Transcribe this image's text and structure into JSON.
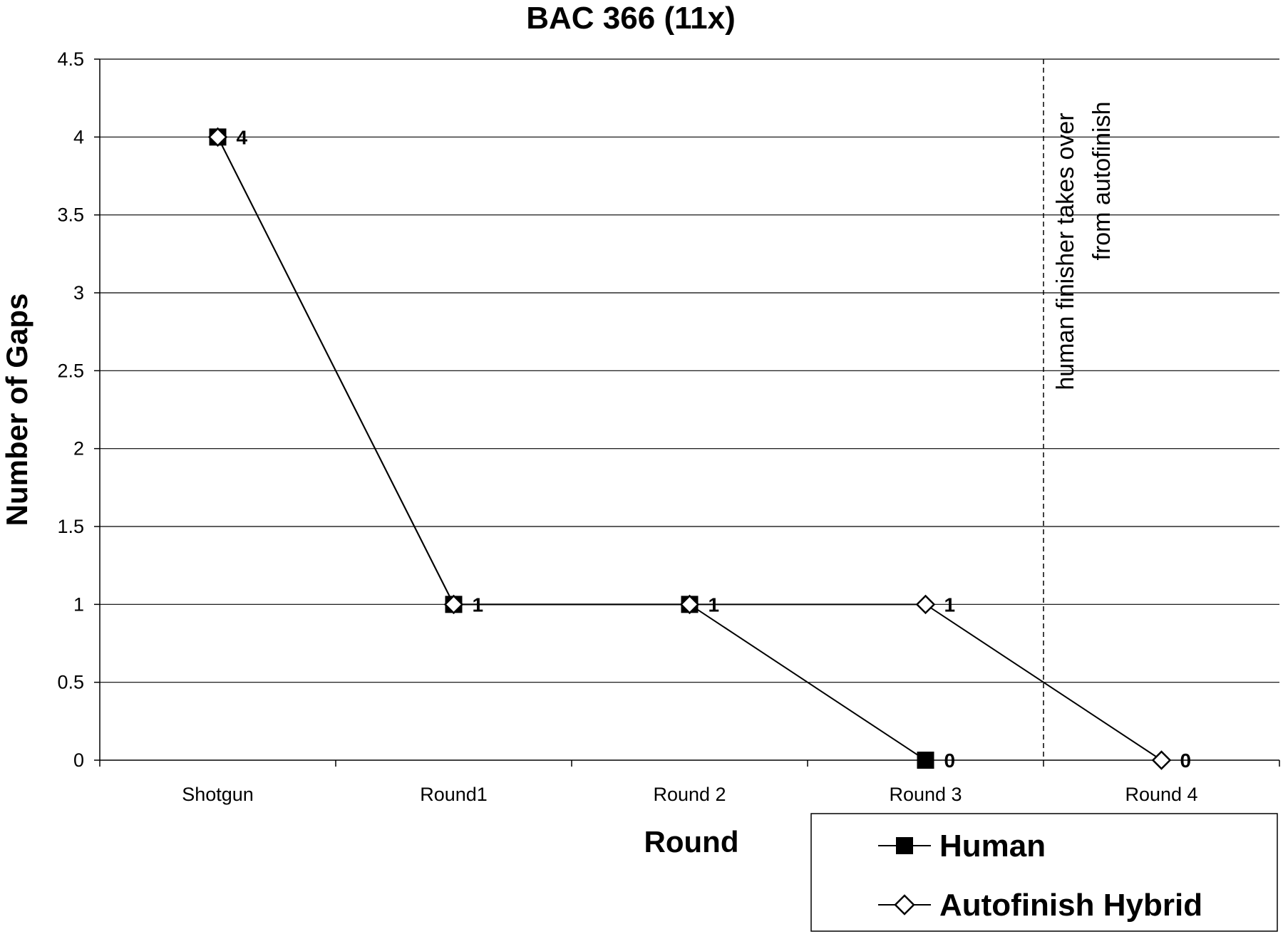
{
  "chart_data": {
    "type": "line",
    "title": "BAC 366 (11x)",
    "xlabel": "Round",
    "ylabel": "Number of Gaps",
    "categories": [
      "Shotgun",
      "Round1",
      "Round 2",
      "Round 3",
      "Round 4"
    ],
    "ylim": [
      0,
      4.5
    ],
    "yticks": [
      "0",
      "0.5",
      "1",
      "1.5",
      "2",
      "2.5",
      "3",
      "3.5",
      "4",
      "4.5"
    ],
    "grid": true,
    "legend_position": "bottom-right",
    "series": [
      {
        "name": "Human",
        "marker": "filled-square",
        "color": "#000000",
        "values": [
          4,
          1,
          1,
          0,
          null
        ],
        "labels": [
          "4",
          "1",
          "1",
          "0",
          ""
        ]
      },
      {
        "name": "Autofinish Hybrid",
        "marker": "open-diamond",
        "color": "#000000",
        "values": [
          4,
          1,
          1,
          1,
          0
        ],
        "labels": [
          "4",
          "1",
          "1",
          "1",
          "0"
        ]
      }
    ],
    "annotation": {
      "line1": "human finisher takes over",
      "line2": "from autofinish",
      "position_between": [
        "Round 3",
        "Round 4"
      ],
      "line_style": "dashed"
    }
  }
}
